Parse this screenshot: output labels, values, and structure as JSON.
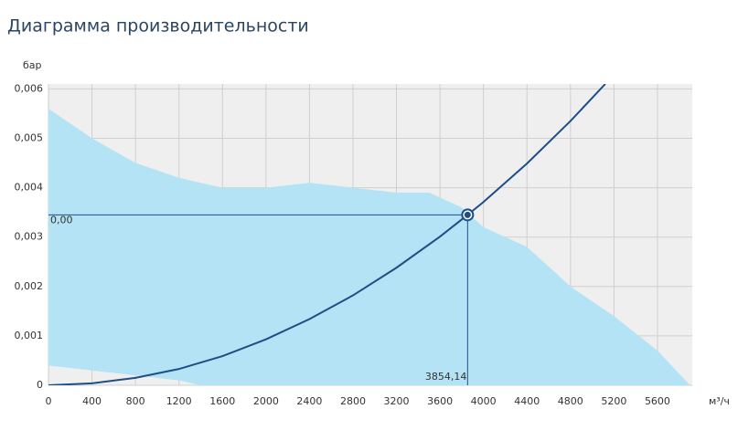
{
  "chart_data": {
    "type": "line",
    "title": "Диаграмма производительности",
    "y_label": "бар",
    "x_label": "м³/ч",
    "xlim": [
      0,
      5920
    ],
    "ylim": [
      0,
      0.0061
    ],
    "xticks": [
      0,
      400,
      800,
      1200,
      1600,
      2000,
      2400,
      2800,
      3200,
      3600,
      4000,
      4400,
      4800,
      5200,
      5600
    ],
    "yticks": [
      0,
      {
        "value": 0.001,
        "label": "0,001"
      },
      {
        "value": 0.002,
        "label": "0,002"
      },
      {
        "value": 0.003,
        "label": "0,003"
      },
      {
        "value": 0.004,
        "label": "0,004"
      },
      {
        "value": 0.005,
        "label": "0,005"
      },
      {
        "value": 0.006,
        "label": "0,006"
      }
    ],
    "grid": true,
    "area": {
      "color": "#b3e3f4",
      "x": [
        0,
        400,
        800,
        1200,
        1400,
        1600,
        2000,
        2400,
        2800,
        3200,
        3500,
        3800,
        4000,
        4400,
        4800,
        5200,
        5600,
        5900
      ],
      "upper": [
        0.0056,
        0.005,
        0.0045,
        0.0042,
        0.0041,
        0.004,
        0.004,
        0.0041,
        0.004,
        0.0039,
        0.0039,
        0.0036,
        0.0032,
        0.0028,
        0.002,
        0.0014,
        0.0007,
        0
      ],
      "lower": [
        0.0004,
        0.0003,
        0.0002,
        0.0001,
        0,
        0,
        0,
        0,
        0,
        0,
        0,
        0,
        0,
        0,
        0,
        0,
        0,
        0
      ]
    },
    "curve": {
      "color": "#1f4e85",
      "x": [
        0,
        400,
        800,
        1200,
        1600,
        2000,
        2400,
        2800,
        3200,
        3600,
        3854.14,
        4000,
        4400,
        4800,
        5120
      ],
      "values": [
        0,
        4e-05,
        0.00015,
        0.00033,
        0.00059,
        0.00093,
        0.00134,
        0.00182,
        0.00238,
        0.00301,
        0.00345,
        0.00371,
        0.00449,
        0.00535,
        0.0061
      ]
    },
    "operating_point": {
      "x": 3854.14,
      "y": 0.00345,
      "x_label": "3854,14",
      "y_label": "0,00",
      "color": "#1f4e85"
    }
  }
}
